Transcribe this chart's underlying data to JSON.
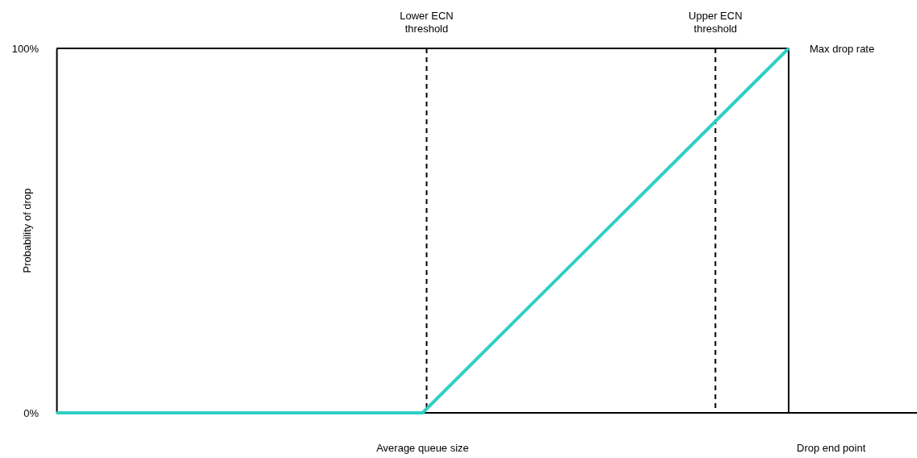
{
  "chart_data": {
    "type": "line",
    "xlabel": "Average queue size",
    "ylabel": "Probability of drop",
    "categories": [
      null,
      null,
      null
    ],
    "series": [
      {
        "color": "#2ecfc4",
        "values": [
          0,
          0,
          100
        ]
      }
    ],
    "ylim": [
      0,
      100
    ],
    "yticks": [
      {
        "value": 0,
        "label": "0%"
      },
      {
        "value": 100,
        "label": "100%"
      }
    ],
    "tick_labels": "y",
    "line_style": "solid",
    "ref_lines": [
      {
        "axis": "y",
        "value": 100,
        "label": "Max drop rate",
        "line_style": "solid",
        "color": "#000000"
      }
    ],
    "annotations": [
      "Lower ECN threshold",
      "Upper ECN threshold",
      "Drop end point"
    ]
  }
}
